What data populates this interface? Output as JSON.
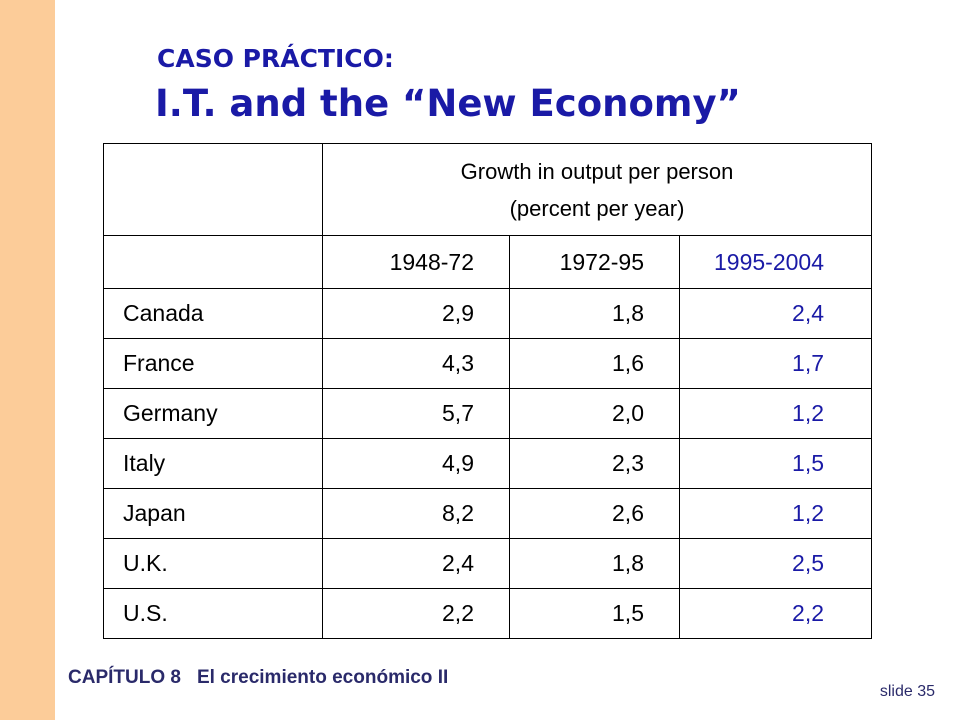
{
  "slide": {
    "title_line1": "CASO PRÁCTICO:",
    "title_line2": "I.T. and the “New Economy”",
    "accent_color": "#1a1aa6",
    "sidebar_color": "#fccc99"
  },
  "table": {
    "header": {
      "line1": "Growth in output per person",
      "line2": "(percent per year)"
    },
    "periods": [
      "1948-72",
      "1972-95",
      "1995-2004"
    ],
    "rows": [
      {
        "country": "Canada",
        "values": [
          "2,9",
          "1,8",
          "2,4"
        ]
      },
      {
        "country": "France",
        "values": [
          "4,3",
          "1,6",
          "1,7"
        ]
      },
      {
        "country": "Germany",
        "values": [
          "5,7",
          "2,0",
          "1,2"
        ]
      },
      {
        "country": "Italy",
        "values": [
          "4,9",
          "2,3",
          "1,5"
        ]
      },
      {
        "country": "Japan",
        "values": [
          "8,2",
          "2,6",
          "1,2"
        ]
      },
      {
        "country": "U.K.",
        "values": [
          "2,4",
          "1,8",
          "2,5"
        ]
      },
      {
        "country": "U.S.",
        "values": [
          "2,2",
          "1,5",
          "2,2"
        ]
      }
    ]
  },
  "footer": {
    "chapter": "CAPÍTULO 8",
    "chapter_title": "El crecimiento económico II",
    "slide_label": "slide 35"
  }
}
